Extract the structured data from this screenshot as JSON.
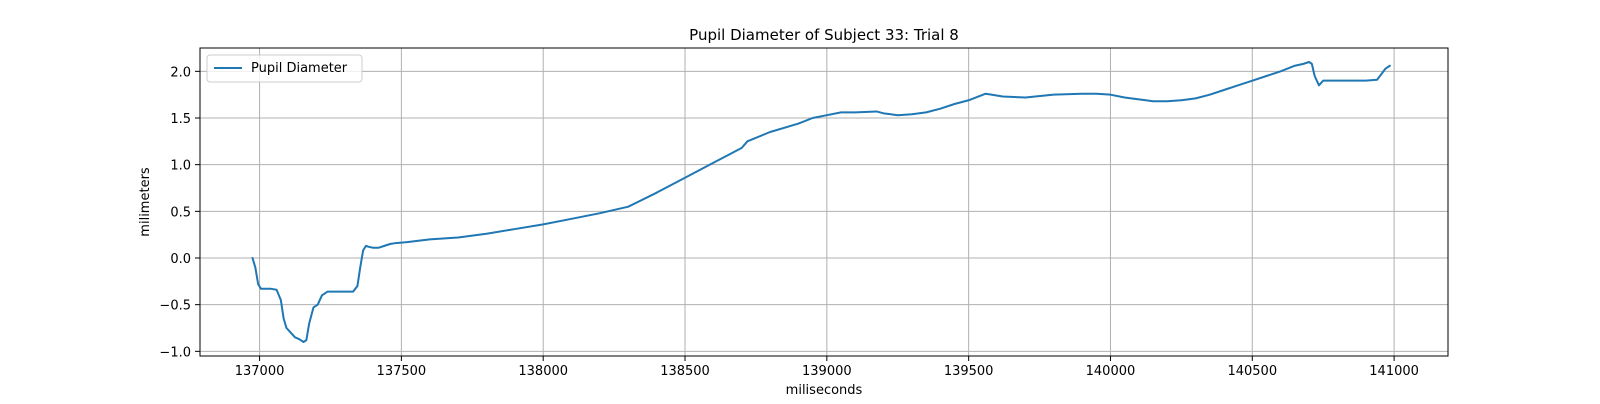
{
  "chart_data": {
    "type": "line",
    "title": "Pupil Diameter of Subject 33: Trial 8",
    "xlabel": "miliseconds",
    "ylabel": "milimeters",
    "xlim": [
      136790,
      141190
    ],
    "ylim": [
      -1.05,
      2.25
    ],
    "xticks": [
      137000,
      137500,
      138000,
      138500,
      139000,
      139500,
      140000,
      140500,
      141000
    ],
    "yticks": [
      -1.0,
      -0.5,
      0.0,
      0.5,
      1.0,
      1.5,
      2.0
    ],
    "grid": true,
    "legend_position": "upper-left",
    "series": [
      {
        "name": "Pupil Diameter",
        "color": "#1f77b4",
        "x": [
          136975,
          136985,
          136995,
          137005,
          137015,
          137040,
          137060,
          137075,
          137085,
          137095,
          137110,
          137125,
          137140,
          137155,
          137165,
          137175,
          137190,
          137205,
          137220,
          137240,
          137270,
          137300,
          137330,
          137345,
          137355,
          137365,
          137375,
          137385,
          137400,
          137420,
          137440,
          137460,
          137480,
          137520,
          137600,
          137700,
          137800,
          137900,
          138000,
          138100,
          138200,
          138300,
          138400,
          138500,
          138600,
          138650,
          138700,
          138720,
          138800,
          138900,
          138950,
          139000,
          139050,
          139100,
          139175,
          139200,
          139250,
          139300,
          139350,
          139400,
          139450,
          139500,
          139560,
          139580,
          139620,
          139700,
          139800,
          139900,
          139950,
          140000,
          140050,
          140100,
          140150,
          140200,
          140250,
          140300,
          140350,
          140400,
          140450,
          140500,
          140550,
          140600,
          140650,
          140680,
          140700,
          140710,
          140720,
          140735,
          140750,
          140770,
          140800,
          140850,
          140900,
          140940,
          140955,
          140970,
          140985
        ],
        "values": [
          0.0,
          -0.1,
          -0.28,
          -0.33,
          -0.33,
          -0.33,
          -0.34,
          -0.45,
          -0.65,
          -0.75,
          -0.8,
          -0.85,
          -0.87,
          -0.9,
          -0.88,
          -0.7,
          -0.53,
          -0.5,
          -0.4,
          -0.36,
          -0.36,
          -0.36,
          -0.36,
          -0.3,
          -0.1,
          0.08,
          0.13,
          0.12,
          0.11,
          0.11,
          0.13,
          0.15,
          0.16,
          0.17,
          0.2,
          0.22,
          0.26,
          0.31,
          0.36,
          0.42,
          0.48,
          0.55,
          0.7,
          0.86,
          1.02,
          1.1,
          1.18,
          1.25,
          1.35,
          1.44,
          1.5,
          1.53,
          1.56,
          1.56,
          1.57,
          1.55,
          1.53,
          1.54,
          1.56,
          1.6,
          1.65,
          1.69,
          1.76,
          1.75,
          1.73,
          1.72,
          1.75,
          1.76,
          1.76,
          1.75,
          1.72,
          1.7,
          1.68,
          1.68,
          1.69,
          1.71,
          1.75,
          1.8,
          1.85,
          1.9,
          1.95,
          2.0,
          2.06,
          2.08,
          2.1,
          2.08,
          1.95,
          1.85,
          1.9,
          1.9,
          1.9,
          1.9,
          1.9,
          1.91,
          1.97,
          2.03,
          2.06
        ]
      }
    ]
  }
}
